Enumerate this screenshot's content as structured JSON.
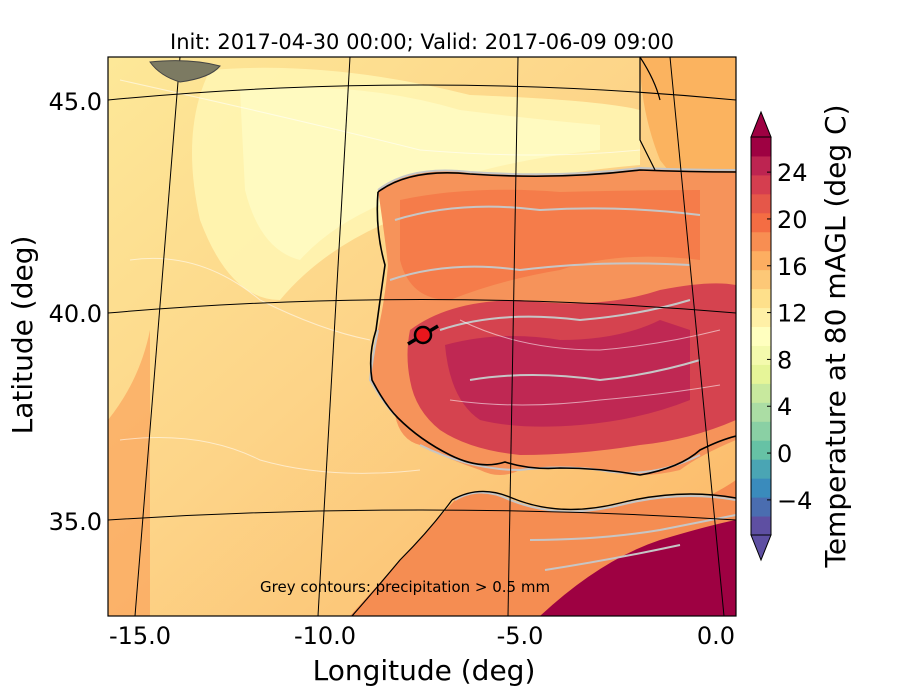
{
  "title": "Init: 2017-04-30 00:00; Valid: 2017-06-09 09:00",
  "map": {
    "xlabel": "Longitude (deg)",
    "ylabel": "Latitude (deg)",
    "lon_ticks": [
      "-15.0",
      "-10.0",
      "-5.0",
      "0.0"
    ],
    "lat_ticks": [
      "45.0",
      "40.0",
      "35.0"
    ],
    "annotation": "Grey contours: precipitation > 0.5 mm",
    "marker": {
      "lon": -7.6,
      "lat": 39.3,
      "color": "#e8161c"
    }
  },
  "colorbar": {
    "label": "Temperature at 80 mAGL (deg C)",
    "ticks": [
      "−4",
      "0",
      "4",
      "8",
      "12",
      "16",
      "20",
      "24"
    ],
    "range": [
      -7,
      27
    ],
    "colors": [
      "#5e4fa2",
      "#4a6db0",
      "#3a8bbc",
      "#4aa5b4",
      "#66c2a5",
      "#8ad0a4",
      "#abdda4",
      "#c8e99e",
      "#e6f598",
      "#f4faad",
      "#ffffbf",
      "#fff0a6",
      "#fee08b",
      "#fdc877",
      "#fdae61",
      "#f88e52",
      "#f46d43",
      "#e55749",
      "#d53e4f",
      "#bd2451",
      "#9e0142"
    ]
  }
}
